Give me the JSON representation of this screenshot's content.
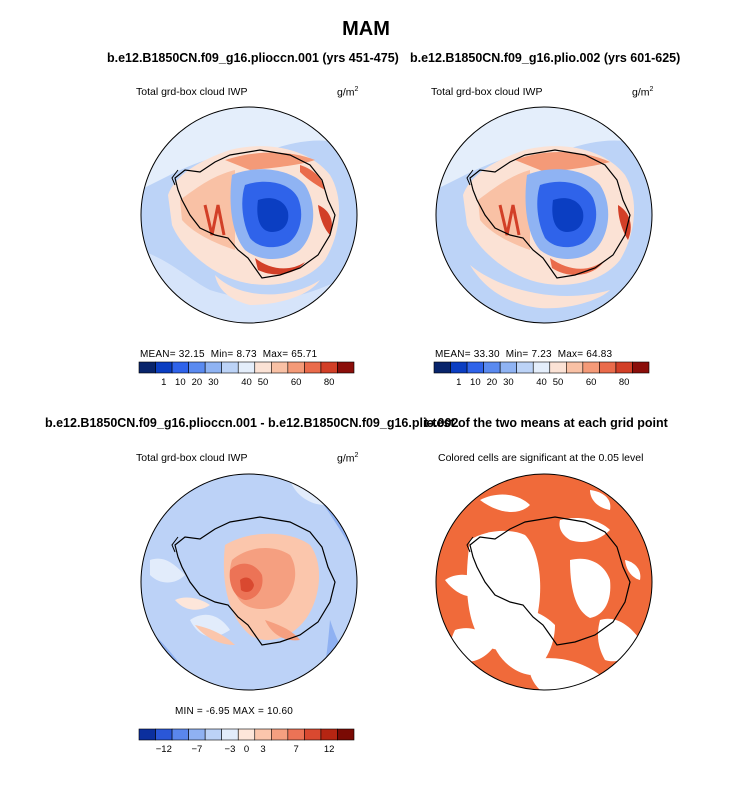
{
  "figure": {
    "title": "MAM"
  },
  "chart_data": [
    {
      "type": "map",
      "panel": "top-left",
      "title": "b.e12.B1850CN.f09_g16.plioccn.001 (yrs 451-475)",
      "subtitle_left": "Total grd-box cloud IWP",
      "units_base": "g/m",
      "units_exp": "2",
      "stats": {
        "mean_label": "MEAN=",
        "mean": "32.15",
        "min_label": "Min=",
        "min": "8.73",
        "max_label": "Max=",
        "max": "65.71"
      },
      "colorbar": {
        "levels": [
          "1",
          "10",
          "20",
          "30",
          "40",
          "50",
          "60",
          "80"
        ],
        "colors": [
          "#08246b",
          "#0b3ec2",
          "#2f63ea",
          "#5a8af0",
          "#8fb3f3",
          "#bcd3f7",
          "#e4eefb",
          "#fbe2d5",
          "#f9c1a5",
          "#f49a78",
          "#ea6b4b",
          "#d23f27",
          "#8b0e0a"
        ]
      }
    },
    {
      "type": "map",
      "panel": "top-right",
      "title": "b.e12.B1850CN.f09_g16.plio.002 (yrs 601-625)",
      "subtitle_left": "Total grd-box cloud IWP",
      "units_base": "g/m",
      "units_exp": "2",
      "stats": {
        "mean_label": "MEAN=",
        "mean": "33.30",
        "min_label": "Min=",
        "min": "7.23",
        "max_label": "Max=",
        "max": "64.83"
      },
      "colorbar": {
        "levels": [
          "1",
          "10",
          "20",
          "30",
          "40",
          "50",
          "60",
          "80"
        ],
        "colors": [
          "#08246b",
          "#0b3ec2",
          "#2f63ea",
          "#5a8af0",
          "#8fb3f3",
          "#bcd3f7",
          "#e4eefb",
          "#fbe2d5",
          "#f9c1a5",
          "#f49a78",
          "#ea6b4b",
          "#d23f27",
          "#8b0e0a"
        ]
      }
    },
    {
      "type": "map",
      "panel": "bottom-left",
      "title": "b.e12.B1850CN.f09_g16.plioccn.001 - b.e12.B1850CN.f09_g16.plio.002",
      "subtitle_left": "Total grd-box cloud IWP",
      "units_base": "g/m",
      "units_exp": "2",
      "stats": {
        "min_label": "MIN =",
        "min": "-6.95",
        "max_label": "MAX =",
        "max": "10.60"
      },
      "colorbar": {
        "levels": [
          "−12",
          "−7",
          "−3",
          "0",
          "3",
          "7",
          "12"
        ],
        "colors": [
          "#0b2f9e",
          "#2a57d8",
          "#5a86ec",
          "#8fb1f2",
          "#bcd2f7",
          "#e2ecfb",
          "#fde6da",
          "#fbc6ac",
          "#f59f80",
          "#ec7356",
          "#d94930",
          "#b52512",
          "#7a0a04"
        ]
      }
    },
    {
      "type": "map",
      "panel": "bottom-right",
      "title": "t-test of the two means at each grid point",
      "subtitle_center": "Colored cells are significant at the 0.05 level",
      "fill_color": "#f06a3a"
    }
  ]
}
